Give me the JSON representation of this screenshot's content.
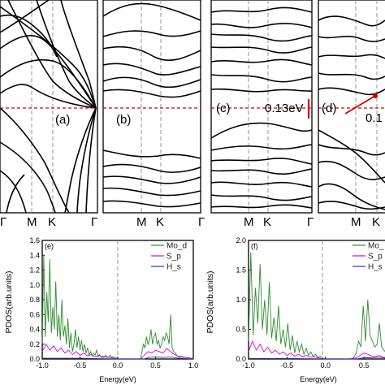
{
  "chart_data": [
    {
      "id": "a",
      "type": "line",
      "panel_label": "(a)",
      "x_labels": [
        "M",
        "K",
        "Γ"
      ],
      "fermi_level_eV": 0
    },
    {
      "id": "b",
      "type": "line",
      "panel_label": "(b)",
      "x_labels": [
        "M",
        "K",
        "Γ"
      ],
      "fermi_level_eV": 0
    },
    {
      "id": "c",
      "type": "line",
      "panel_label": "(c)",
      "annotation": "0.13eV",
      "x_labels": [
        "Γ",
        "M",
        "K"
      ],
      "fermi_level_eV": 0
    },
    {
      "id": "d",
      "type": "line",
      "panel_label": "(d)",
      "annotation": "0.1",
      "x_labels": [
        "M",
        "K"
      ],
      "fermi_level_eV": 0
    },
    {
      "id": "e",
      "type": "line",
      "panel_label": "(e)",
      "xlabel": "Energy(eV)",
      "ylabel": "PDOS(arb.units)",
      "xlim": [
        -1.0,
        1.0
      ],
      "ylim": [
        0,
        1.6
      ],
      "x_ticks": [
        "-1.0",
        "-0.5",
        "0.0",
        "0.5",
        "1.0"
      ],
      "y_ticks": [
        "0.0",
        "0.2",
        "0.4",
        "0.6",
        "0.8",
        "1.0",
        "1.2",
        "1.4",
        "1.6"
      ],
      "legend": "top-right",
      "series": [
        {
          "name": "Mo_d",
          "color": "#2e8b2e",
          "x": [
            -1.0,
            -0.98,
            -0.96,
            -0.94,
            -0.92,
            -0.9,
            -0.88,
            -0.86,
            -0.84,
            -0.82,
            -0.8,
            -0.78,
            -0.76,
            -0.74,
            -0.72,
            -0.7,
            -0.68,
            -0.66,
            -0.64,
            -0.62,
            -0.6,
            -0.58,
            -0.56,
            -0.54,
            -0.52,
            -0.5,
            -0.48,
            -0.46,
            -0.44,
            -0.42,
            -0.4,
            -0.38,
            -0.36,
            -0.34,
            -0.32,
            -0.3,
            -0.28,
            -0.26,
            -0.24,
            -0.22,
            -0.2,
            -0.18,
            -0.16,
            -0.14,
            -0.12,
            -0.1,
            -0.08,
            -0.06,
            -0.04,
            -0.02,
            0.0,
            0.02,
            0.04,
            0.06,
            0.08,
            0.1,
            0.12,
            0.14,
            0.16,
            0.18,
            0.2,
            0.22,
            0.24,
            0.26,
            0.28,
            0.3,
            0.32,
            0.34,
            0.36,
            0.38,
            0.4,
            0.42,
            0.44,
            0.46,
            0.48,
            0.5,
            0.52,
            0.54,
            0.56,
            0.58,
            0.6,
            0.62,
            0.64,
            0.66,
            0.68,
            0.7,
            0.72,
            0.74,
            0.76,
            0.78,
            0.8,
            0.82,
            0.84,
            0.86,
            0.88,
            0.9,
            0.92,
            0.94,
            0.96,
            0.98,
            1.0
          ],
          "y": [
            0.2,
            1.4,
            0.3,
            0.9,
            0.5,
            1.35,
            0.35,
            0.7,
            0.4,
            1.05,
            0.3,
            0.6,
            0.25,
            0.8,
            0.3,
            0.45,
            0.2,
            0.55,
            0.15,
            0.35,
            0.1,
            0.2,
            0.4,
            0.15,
            0.3,
            0.12,
            0.25,
            0.1,
            0.2,
            0.08,
            0.15,
            0.05,
            0.1,
            0.04,
            0.08,
            0.05,
            0.12,
            0.03,
            0.06,
            0.02,
            0.04,
            0.03,
            0.05,
            0.02,
            0.03,
            0.05,
            0.02,
            0.03,
            0.02,
            0.02,
            0.0,
            0.0,
            0.0,
            0.0,
            0.0,
            0.0,
            0.0,
            0.0,
            0.0,
            0.0,
            0.0,
            0.0,
            0.0,
            0.0,
            0.0,
            0.0,
            0.1,
            0.2,
            0.15,
            0.3,
            0.2,
            0.25,
            0.4,
            0.2,
            0.3,
            0.35,
            0.2,
            0.25,
            0.15,
            0.2,
            0.3,
            0.25,
            0.35,
            0.3,
            0.2,
            0.6,
            0.15,
            0.1,
            0.08,
            0.05,
            0.03,
            0.02,
            0.04,
            0.02,
            0.03,
            0.02,
            0.01,
            0.02,
            0.01,
            0.01,
            0.01
          ]
        },
        {
          "name": "S_p",
          "color": "#e000e0",
          "x": [
            -1.0,
            -0.95,
            -0.9,
            -0.85,
            -0.8,
            -0.75,
            -0.7,
            -0.65,
            -0.6,
            -0.55,
            -0.5,
            -0.45,
            -0.4,
            -0.35,
            -0.3,
            -0.25,
            -0.2,
            -0.15,
            -0.1,
            -0.05,
            0.0,
            0.05,
            0.1,
            0.15,
            0.2,
            0.25,
            0.3,
            0.35,
            0.4,
            0.45,
            0.5,
            0.55,
            0.6,
            0.65,
            0.7,
            0.75,
            0.8,
            0.85,
            0.9,
            0.95,
            1.0
          ],
          "y": [
            0.1,
            0.2,
            0.12,
            0.18,
            0.1,
            0.15,
            0.08,
            0.12,
            0.06,
            0.1,
            0.05,
            0.08,
            0.04,
            0.06,
            0.03,
            0.05,
            0.02,
            0.03,
            0.02,
            0.01,
            0.0,
            0.0,
            0.0,
            0.0,
            0.0,
            0.0,
            0.0,
            0.05,
            0.1,
            0.08,
            0.12,
            0.1,
            0.08,
            0.14,
            0.1,
            0.06,
            0.04,
            0.03,
            0.02,
            0.01,
            0.01
          ]
        },
        {
          "name": "H_s",
          "color": "#3333aa",
          "x": [
            -1.0,
            -0.5,
            0.0,
            0.35,
            0.4,
            0.5,
            0.6,
            0.7,
            0.8,
            1.0
          ],
          "y": [
            0.01,
            0.01,
            0.0,
            0.0,
            0.02,
            0.03,
            0.02,
            0.03,
            0.01,
            0.0
          ]
        }
      ]
    },
    {
      "id": "f",
      "type": "line",
      "panel_label": "(f)",
      "xlabel": "Energy(eV)",
      "ylabel": "PDOS(arb.units)",
      "xlim": [
        -1.0,
        0.9
      ],
      "ylim": [
        0,
        2.0
      ],
      "x_ticks": [
        "-1.0",
        "-0.5",
        "0.0",
        "0.5"
      ],
      "y_ticks": [
        "0.0",
        "0.5",
        "1.0",
        "1.5",
        "2.0"
      ],
      "legend": "top-right",
      "series": [
        {
          "name": "Mo_",
          "color": "#2e8b2e",
          "x": [
            -1.0,
            -0.97,
            -0.94,
            -0.91,
            -0.88,
            -0.85,
            -0.82,
            -0.79,
            -0.76,
            -0.73,
            -0.7,
            -0.67,
            -0.64,
            -0.61,
            -0.58,
            -0.55,
            -0.52,
            -0.49,
            -0.46,
            -0.43,
            -0.4,
            -0.37,
            -0.34,
            -0.31,
            -0.28,
            -0.25,
            -0.22,
            -0.19,
            -0.16,
            -0.13,
            -0.1,
            -0.07,
            -0.04,
            0.0,
            0.05,
            0.1,
            0.15,
            0.2,
            0.25,
            0.3,
            0.35,
            0.4,
            0.43,
            0.46,
            0.49,
            0.52,
            0.55,
            0.58,
            0.61,
            0.64,
            0.67,
            0.7,
            0.73,
            0.76,
            0.79,
            0.82,
            0.85,
            0.88,
            0.9
          ],
          "y": [
            0.3,
            1.8,
            0.4,
            1.2,
            0.6,
            1.6,
            0.5,
            1.0,
            0.4,
            1.3,
            0.35,
            0.7,
            0.3,
            0.9,
            0.25,
            0.5,
            0.2,
            0.6,
            0.15,
            0.4,
            0.1,
            0.3,
            0.12,
            0.25,
            0.08,
            0.18,
            0.06,
            0.12,
            0.04,
            0.08,
            0.03,
            0.05,
            0.02,
            0.0,
            0.0,
            0.0,
            0.0,
            0.0,
            0.0,
            0.0,
            0.0,
            0.1,
            0.3,
            0.2,
            0.9,
            0.3,
            1.0,
            0.4,
            0.3,
            0.2,
            0.25,
            0.6,
            0.2,
            0.15,
            0.1,
            0.08,
            0.05,
            0.03,
            0.02
          ]
        },
        {
          "name": "S_p",
          "color": "#e000e0",
          "x": [
            -1.0,
            -0.95,
            -0.9,
            -0.85,
            -0.8,
            -0.75,
            -0.7,
            -0.65,
            -0.6,
            -0.55,
            -0.5,
            -0.45,
            -0.4,
            -0.35,
            -0.3,
            -0.25,
            -0.2,
            -0.15,
            -0.1,
            -0.05,
            0.0,
            0.1,
            0.2,
            0.3,
            0.4,
            0.45,
            0.5,
            0.55,
            0.6,
            0.65,
            0.7,
            0.75,
            0.8,
            0.85,
            0.9
          ],
          "y": [
            0.12,
            0.3,
            0.15,
            0.25,
            0.12,
            0.2,
            0.1,
            0.15,
            0.08,
            0.12,
            0.06,
            0.1,
            0.05,
            0.08,
            0.04,
            0.06,
            0.03,
            0.04,
            0.02,
            0.01,
            0.0,
            0.0,
            0.0,
            0.0,
            0.02,
            0.06,
            0.1,
            0.08,
            0.05,
            0.04,
            0.06,
            0.03,
            0.02,
            0.01,
            0.01
          ]
        },
        {
          "name": "H_s",
          "color": "#3333aa",
          "x": [
            -1.0,
            -0.5,
            0.0,
            0.4,
            0.5,
            0.6,
            0.7,
            0.8,
            0.9
          ],
          "y": [
            0.01,
            0.01,
            0.0,
            0.0,
            0.02,
            0.02,
            0.03,
            0.01,
            0.0
          ]
        }
      ]
    }
  ]
}
